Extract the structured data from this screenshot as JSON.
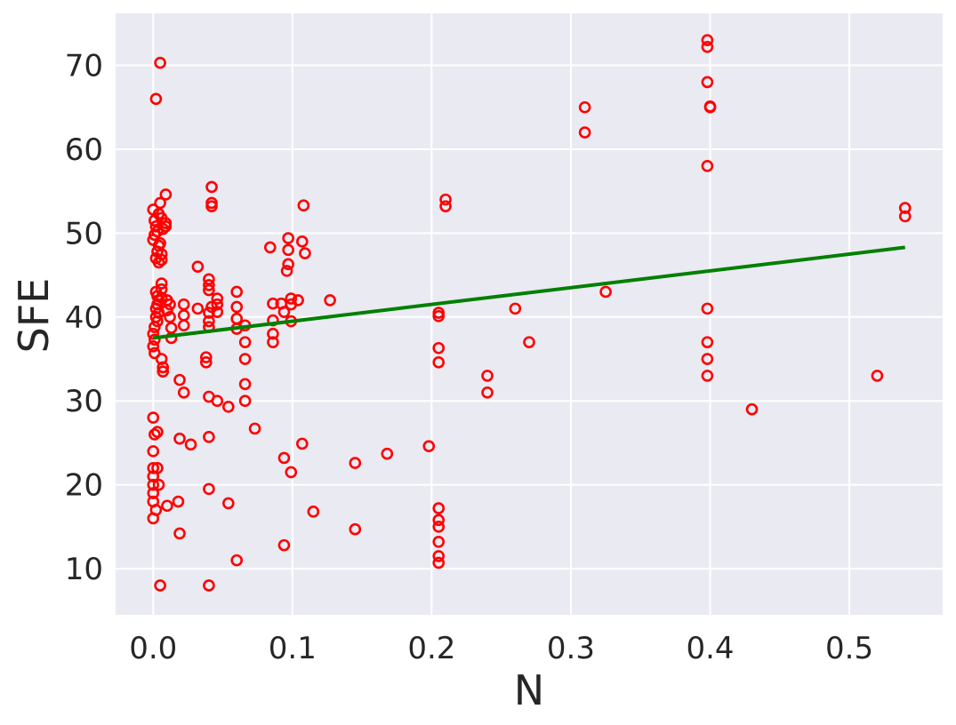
{
  "chart_data": {
    "type": "scatter",
    "title": "",
    "xlabel": "N",
    "ylabel": "SFE",
    "xlim": [
      -0.027,
      0.567
    ],
    "ylim": [
      4.5,
      76.2
    ],
    "xticks": [
      0.0,
      0.1,
      0.2,
      0.3,
      0.4,
      0.5
    ],
    "xtick_labels": [
      "0.0",
      "0.1",
      "0.2",
      "0.3",
      "0.4",
      "0.5"
    ],
    "yticks": [
      10,
      20,
      30,
      40,
      50,
      60,
      70
    ],
    "ytick_labels": [
      "10",
      "20",
      "30",
      "40",
      "50",
      "60",
      "70"
    ],
    "grid": true,
    "legend": "none",
    "colors": {
      "points": "#ff0000",
      "fit_line": "#008000",
      "background": "#eaeaf2",
      "grid": "#ffffff"
    },
    "points": [
      [
        0.005,
        70.3
      ],
      [
        0.002,
        66.0
      ],
      [
        0.005,
        8.0
      ],
      [
        0.04,
        8.0
      ],
      [
        0.06,
        11.0
      ],
      [
        0.0,
        52.8
      ],
      [
        0.001,
        51.5
      ],
      [
        0.002,
        50.8
      ],
      [
        0.003,
        50.2
      ],
      [
        0.001,
        49.8
      ],
      [
        0.0,
        49.2
      ],
      [
        0.004,
        48.5
      ],
      [
        0.003,
        47.8
      ],
      [
        0.002,
        47.0
      ],
      [
        0.004,
        46.5
      ],
      [
        0.005,
        53.6
      ],
      [
        0.004,
        52.3
      ],
      [
        0.006,
        51.8
      ],
      [
        0.007,
        50.5
      ],
      [
        0.005,
        48.8
      ],
      [
        0.009,
        54.6
      ],
      [
        0.009,
        51.2
      ],
      [
        0.009,
        50.8
      ],
      [
        0.006,
        47.5
      ],
      [
        0.006,
        46.8
      ],
      [
        0.006,
        44.0
      ],
      [
        0.006,
        43.3
      ],
      [
        0.002,
        43.0
      ],
      [
        0.003,
        42.5
      ],
      [
        0.004,
        42.0
      ],
      [
        0.003,
        41.5
      ],
      [
        0.002,
        41.0
      ],
      [
        0.004,
        40.5
      ],
      [
        0.002,
        40.0
      ],
      [
        0.003,
        39.5
      ],
      [
        0.001,
        38.8
      ],
      [
        0.0,
        38.0
      ],
      [
        0.001,
        37.3
      ],
      [
        0.0,
        36.5
      ],
      [
        0.001,
        35.7
      ],
      [
        0.006,
        42.3
      ],
      [
        0.01,
        42.0
      ],
      [
        0.012,
        41.5
      ],
      [
        0.01,
        40.8
      ],
      [
        0.012,
        40.0
      ],
      [
        0.013,
        38.7
      ],
      [
        0.013,
        37.5
      ],
      [
        0.006,
        35.0
      ],
      [
        0.007,
        34.0
      ],
      [
        0.007,
        33.5
      ],
      [
        0.022,
        41.5
      ],
      [
        0.022,
        40.2
      ],
      [
        0.022,
        39.0
      ],
      [
        0.032,
        46.0
      ],
      [
        0.032,
        41.0
      ],
      [
        0.04,
        44.5
      ],
      [
        0.04,
        43.8
      ],
      [
        0.04,
        43.2
      ],
      [
        0.042,
        41.2
      ],
      [
        0.04,
        40.5
      ],
      [
        0.04,
        39.5
      ],
      [
        0.04,
        38.8
      ],
      [
        0.046,
        42.2
      ],
      [
        0.046,
        41.5
      ],
      [
        0.046,
        40.6
      ],
      [
        0.042,
        55.5
      ],
      [
        0.042,
        53.6
      ],
      [
        0.042,
        53.2
      ],
      [
        0.038,
        35.2
      ],
      [
        0.038,
        34.6
      ],
      [
        0.06,
        43.0
      ],
      [
        0.06,
        41.2
      ],
      [
        0.06,
        39.8
      ],
      [
        0.06,
        38.6
      ],
      [
        0.066,
        39.0
      ],
      [
        0.066,
        37.0
      ],
      [
        0.066,
        35.0
      ],
      [
        0.066,
        32.0
      ],
      [
        0.066,
        30.0
      ],
      [
        0.019,
        32.5
      ],
      [
        0.022,
        31.0
      ],
      [
        0.04,
        30.5
      ],
      [
        0.046,
        30.0
      ],
      [
        0.054,
        29.3
      ],
      [
        0.073,
        26.7
      ],
      [
        0.084,
        48.3
      ],
      [
        0.086,
        41.6
      ],
      [
        0.086,
        39.6
      ],
      [
        0.086,
        38.0
      ],
      [
        0.086,
        37.0
      ],
      [
        0.092,
        41.6
      ],
      [
        0.094,
        40.6
      ],
      [
        0.097,
        49.4
      ],
      [
        0.097,
        48.0
      ],
      [
        0.097,
        46.3
      ],
      [
        0.096,
        45.5
      ],
      [
        0.099,
        42.2
      ],
      [
        0.099,
        41.5
      ],
      [
        0.099,
        39.5
      ],
      [
        0.104,
        42.0
      ],
      [
        0.107,
        49.0
      ],
      [
        0.109,
        47.6
      ],
      [
        0.108,
        53.3
      ],
      [
        0.127,
        42.0
      ],
      [
        0.0,
        28.0
      ],
      [
        0.001,
        26.0
      ],
      [
        0.003,
        26.3
      ],
      [
        0.0,
        24.0
      ],
      [
        0.0,
        22.0
      ],
      [
        0.003,
        22.0
      ],
      [
        0.0,
        21.0
      ],
      [
        0.0,
        20.0
      ],
      [
        0.004,
        20.0
      ],
      [
        0.0,
        19.0
      ],
      [
        0.0,
        18.0
      ],
      [
        0.002,
        17.0
      ],
      [
        0.0,
        16.0
      ],
      [
        0.01,
        17.5
      ],
      [
        0.018,
        18.0
      ],
      [
        0.019,
        14.2
      ],
      [
        0.019,
        25.5
      ],
      [
        0.027,
        24.8
      ],
      [
        0.04,
        25.7
      ],
      [
        0.04,
        19.5
      ],
      [
        0.054,
        17.8
      ],
      [
        0.094,
        23.2
      ],
      [
        0.094,
        12.8
      ],
      [
        0.099,
        21.5
      ],
      [
        0.107,
        24.9
      ],
      [
        0.115,
        16.8
      ],
      [
        0.145,
        22.6
      ],
      [
        0.145,
        14.7
      ],
      [
        0.168,
        23.7
      ],
      [
        0.198,
        24.6
      ],
      [
        0.205,
        40.5
      ],
      [
        0.205,
        40.1
      ],
      [
        0.205,
        36.3
      ],
      [
        0.205,
        34.6
      ],
      [
        0.205,
        17.2
      ],
      [
        0.205,
        15.8
      ],
      [
        0.205,
        15.0
      ],
      [
        0.205,
        13.2
      ],
      [
        0.205,
        11.5
      ],
      [
        0.205,
        10.7
      ],
      [
        0.21,
        54.0
      ],
      [
        0.21,
        53.2
      ],
      [
        0.24,
        33.0
      ],
      [
        0.24,
        31.0
      ],
      [
        0.26,
        41.0
      ],
      [
        0.27,
        37.0
      ],
      [
        0.31,
        65.0
      ],
      [
        0.31,
        62.0
      ],
      [
        0.325,
        43.0
      ],
      [
        0.398,
        73.0
      ],
      [
        0.398,
        72.2
      ],
      [
        0.398,
        68.0
      ],
      [
        0.4,
        65.0
      ],
      [
        0.4,
        65.1
      ],
      [
        0.398,
        58.0
      ],
      [
        0.398,
        41.0
      ],
      [
        0.398,
        37.0
      ],
      [
        0.398,
        35.0
      ],
      [
        0.398,
        33.0
      ],
      [
        0.43,
        29.0
      ],
      [
        0.52,
        33.0
      ],
      [
        0.54,
        53.0
      ],
      [
        0.54,
        52.0
      ]
    ],
    "fit_line": [
      [
        0.0,
        37.5
      ],
      [
        0.54,
        48.3
      ]
    ]
  }
}
